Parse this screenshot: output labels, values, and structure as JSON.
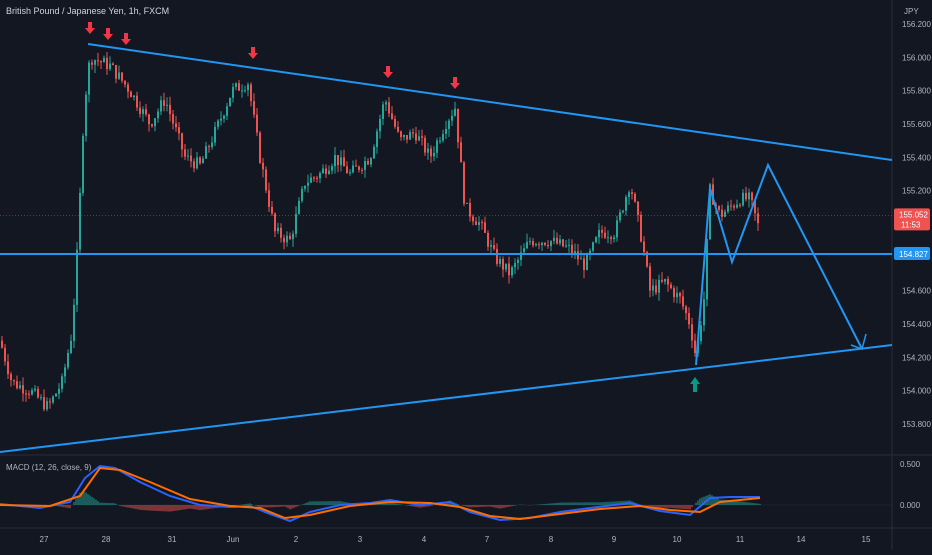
{
  "header": {
    "symbol_title": "British Pound / Japanese Yen, 1h, FXCM",
    "currency": "JPY"
  },
  "colors": {
    "background": "#131722",
    "up": "#26a69a",
    "down": "#ef5350",
    "trendline": "#2196f3",
    "arrow_down": "#f23645",
    "arrow_up": "#089981",
    "macd_line": "#2962ff",
    "signal_line": "#ff6d00"
  },
  "price_panel": {
    "axis_labels": [
      "156.200",
      "156.000",
      "155.800",
      "155.600",
      "155.400",
      "155.200",
      "154.600",
      "154.400",
      "154.200",
      "154.000",
      "153.800"
    ],
    "current_price": "155.052",
    "countdown": "11:53",
    "level_label": "154.827"
  },
  "macd_panel": {
    "title": "MACD (12, 26, close, 9)",
    "axis_labels": [
      "0.500",
      "0.000"
    ]
  },
  "x_axis": {
    "labels": [
      "27",
      "28",
      "31",
      "Jun",
      "2",
      "3",
      "4",
      "7",
      "8",
      "9",
      "10",
      "11",
      "14",
      "15"
    ]
  },
  "chart_data": {
    "type": "line",
    "title": "British Pound / Japanese Yen, 1h, FXCM",
    "y_unit": "JPY",
    "ylim": [
      153.7,
      156.25
    ],
    "price_path": [
      {
        "x": "27",
        "y": 154.3
      },
      {
        "x": "27",
        "y": 154.0
      },
      {
        "x": "27",
        "y": 153.95
      },
      {
        "x": "28",
        "y": 154.5
      },
      {
        "x": "28",
        "y": 156.05
      },
      {
        "x": "28",
        "y": 155.9
      },
      {
        "x": "31",
        "y": 155.75
      },
      {
        "x": "31",
        "y": 155.45
      },
      {
        "x": "31",
        "y": 155.6
      },
      {
        "x": "Jun",
        "y": 155.85
      },
      {
        "x": "Jun",
        "y": 155.3
      },
      {
        "x": "2",
        "y": 154.95
      },
      {
        "x": "2",
        "y": 155.15
      },
      {
        "x": "3",
        "y": 155.45
      },
      {
        "x": "3",
        "y": 155.8
      },
      {
        "x": "3",
        "y": 155.45
      },
      {
        "x": "4",
        "y": 155.65
      },
      {
        "x": "4",
        "y": 155.75
      },
      {
        "x": "7",
        "y": 155.05
      },
      {
        "x": "7",
        "y": 154.75
      },
      {
        "x": "8",
        "y": 154.9
      },
      {
        "x": "8",
        "y": 154.85
      },
      {
        "x": "9",
        "y": 155.0
      },
      {
        "x": "9",
        "y": 155.3
      },
      {
        "x": "10",
        "y": 154.75
      },
      {
        "x": "10",
        "y": 154.15
      },
      {
        "x": "10",
        "y": 155.2
      },
      {
        "x": "11",
        "y": 155.1
      },
      {
        "x": "11",
        "y": 155.05
      }
    ],
    "trendlines": [
      {
        "name": "descending resistance",
        "from": {
          "x": "28",
          "y": 156.08
        },
        "to": {
          "x": "15",
          "y": 155.38
        }
      },
      {
        "name": "ascending support",
        "from": {
          "x": "26",
          "y": 153.7
        },
        "to": {
          "x": "15",
          "y": 154.27
        }
      },
      {
        "name": "horizontal level",
        "y": 154.827
      }
    ],
    "markers": {
      "resistance_touches": 6,
      "support_touches": 1
    }
  }
}
